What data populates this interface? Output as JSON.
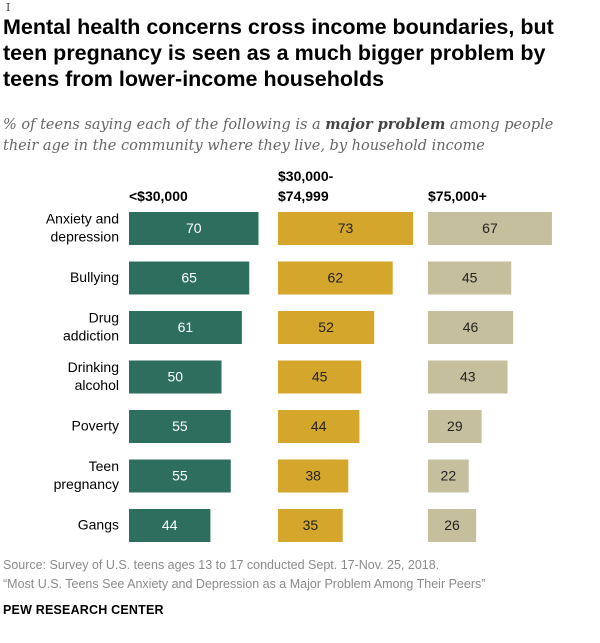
{
  "cursor_glyph": "I",
  "title": "Mental health concerns cross income boundaries, but teen pregnancy is seen as a much bigger problem by teens from lower-income households",
  "subtitle": {
    "before": "% of teens saying each of the following is a ",
    "emphasis": "major problem",
    "after": " among people their age in the community where they live, by household income"
  },
  "source": {
    "line1": "Source: Survey of U.S. teens ages 13 to 17 conducted Sept. 17-Nov. 25, 2018.",
    "line2": "“Most U.S. Teens See Anxiety and Depression as a Major Problem Among Their Peers”"
  },
  "org": "PEW RESEARCH CENTER",
  "chart_data": {
    "type": "bar",
    "categories": [
      [
        "Anxiety and",
        "depression"
      ],
      [
        "Bullying"
      ],
      [
        "Drug",
        "addiction"
      ],
      [
        "Drinking",
        "alcohol"
      ],
      [
        "Poverty"
      ],
      [
        "Teen",
        "pregnancy"
      ],
      [
        "Gangs"
      ]
    ],
    "series": [
      {
        "name": [
          "<$30,000"
        ],
        "color": "#2e6e5e",
        "label_color": "#ffffff",
        "values": [
          70,
          65,
          61,
          50,
          55,
          55,
          44
        ]
      },
      {
        "name": [
          "$30,000-",
          "$74,999"
        ],
        "color": "#d4a72c",
        "label_color": "#222222",
        "values": [
          73,
          62,
          52,
          45,
          44,
          38,
          35
        ]
      },
      {
        "name": [
          "$75,000+"
        ],
        "color": "#c6bf9e",
        "label_color": "#222222",
        "values": [
          67,
          45,
          46,
          43,
          29,
          22,
          26
        ]
      }
    ],
    "xlim": [
      0,
      100
    ],
    "grid": false,
    "legend": "column headers above bars"
  }
}
